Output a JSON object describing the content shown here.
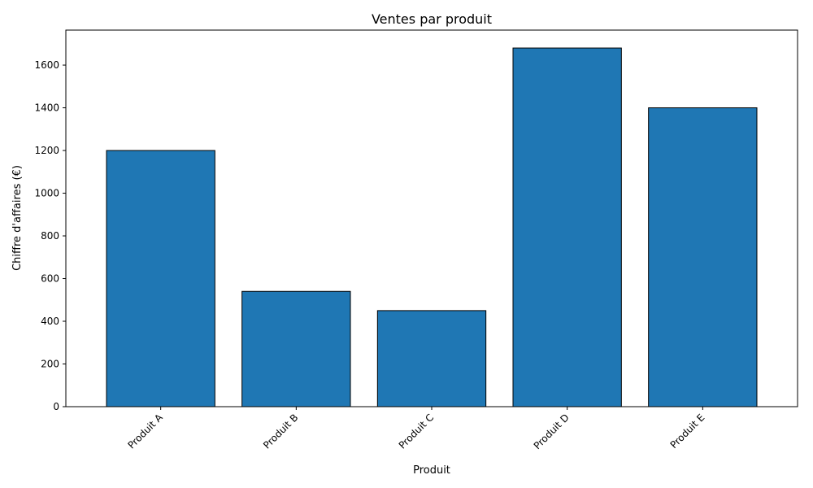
{
  "chart_data": {
    "type": "bar",
    "title": "Ventes par produit",
    "xlabel": "Produit",
    "ylabel": "Chiffre d'affaires (€)",
    "categories": [
      "Produit A",
      "Produit B",
      "Produit C",
      "Produit D",
      "Produit E"
    ],
    "values": [
      1200,
      540,
      450,
      1680,
      1400
    ],
    "ylim": [
      0,
      1764
    ],
    "yticks": [
      0,
      200,
      400,
      600,
      800,
      1000,
      1200,
      1400,
      1600
    ],
    "bar_color": "#1f77b4",
    "edge_color": "#000000",
    "grid": false,
    "legend": false,
    "xtick_rotation": "45-degrees"
  }
}
